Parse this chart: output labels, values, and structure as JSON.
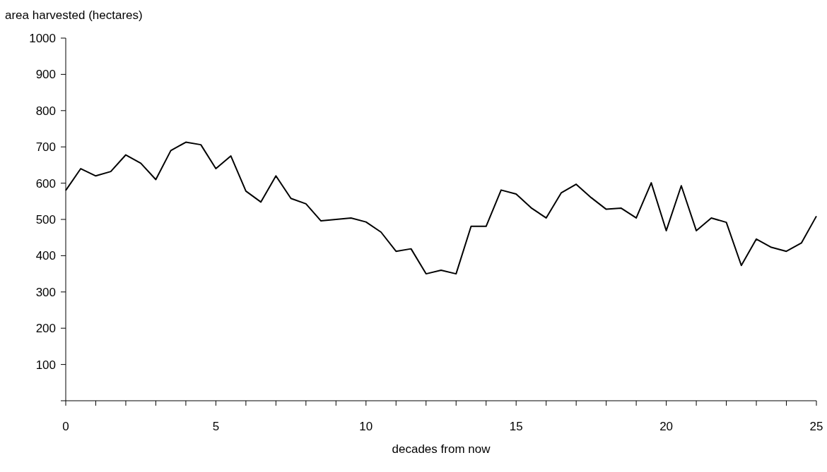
{
  "chart_data": {
    "type": "line",
    "xlabel": "decades from now",
    "ylabel": "area harvested (hectares)",
    "x": [
      0,
      0.5,
      1,
      1.5,
      2,
      2.5,
      3,
      3.5,
      4,
      4.5,
      5,
      5.5,
      6,
      6.5,
      7,
      7.5,
      8,
      8.5,
      9,
      9.5,
      10,
      10.5,
      11,
      11.5,
      12,
      12.5,
      13,
      13.5,
      14,
      14.5,
      15,
      15.5,
      16,
      16.5,
      17,
      17.5,
      18,
      18.5,
      19,
      19.5,
      20,
      20.5,
      21,
      21.5,
      22,
      22.5,
      23,
      23.5,
      24,
      24.5,
      25
    ],
    "series": [
      {
        "color": "#000000",
        "values": [
          580,
          640,
          620,
          632,
          678,
          655,
          610,
          690,
          713,
          706,
          640,
          675,
          578,
          548,
          620,
          558,
          543,
          496,
          500,
          504,
          493,
          465,
          412,
          419,
          350,
          360,
          350,
          481,
          481,
          581,
          570,
          532,
          504,
          573,
          597,
          560,
          528,
          531,
          504,
          601,
          469,
          593,
          469,
          504,
          492,
          373,
          446,
          423,
          412,
          435,
          509
        ]
      }
    ],
    "xlim": [
      0,
      25
    ],
    "xticks": [
      0,
      {
        "value": 1,
        "label": null
      },
      {
        "value": 2,
        "label": null
      },
      {
        "value": 3,
        "label": null
      },
      {
        "value": 4,
        "label": null
      },
      5,
      {
        "value": 6,
        "label": null
      },
      {
        "value": 7,
        "label": null
      },
      {
        "value": 8,
        "label": null
      },
      {
        "value": 9,
        "label": null
      },
      10,
      {
        "value": 11,
        "label": null
      },
      {
        "value": 12,
        "label": null
      },
      {
        "value": 13,
        "label": null
      },
      {
        "value": 14,
        "label": null
      },
      15,
      {
        "value": 16,
        "label": null
      },
      {
        "value": 17,
        "label": null
      },
      {
        "value": 18,
        "label": null
      },
      {
        "value": 19,
        "label": null
      },
      20,
      {
        "value": 21,
        "label": null
      },
      {
        "value": 22,
        "label": null
      },
      {
        "value": 23,
        "label": null
      },
      {
        "value": 24,
        "label": null
      },
      25
    ],
    "ylim": [
      0,
      1000
    ],
    "yticks": [
      {
        "value": 0,
        "label": null
      },
      100,
      200,
      300,
      400,
      500,
      600,
      700,
      800,
      900,
      1000
    ],
    "grid": false,
    "marker": "none",
    "line_style": "solid"
  }
}
